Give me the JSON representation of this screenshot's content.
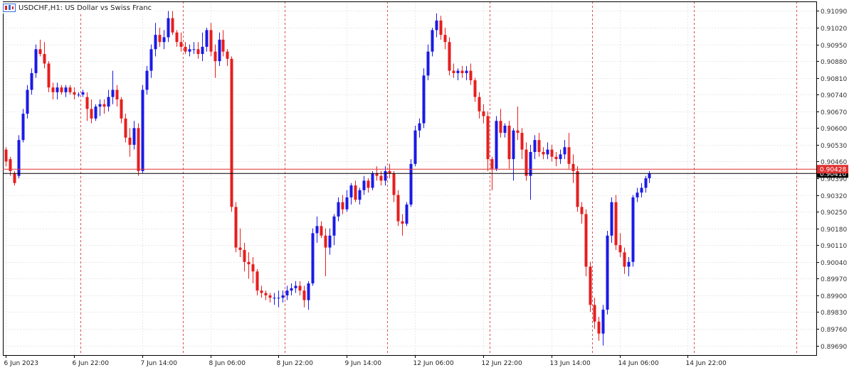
{
  "window": {
    "title": "USDCHF,H1:  US Dollar vs Swiss Franc",
    "icon": "chart-window-icon"
  },
  "colors": {
    "background": "#ffffff",
    "bull": "#1a1ae6",
    "bear": "#e61e1e",
    "grid": "#e8e8e8",
    "separator": "#e05050",
    "axis_text": "#333333",
    "time_text": "#222222",
    "bid_line": "#e03030",
    "ask_line": "#000000"
  },
  "chart_data": {
    "type": "candlestick",
    "symbol": "USDCHF",
    "timeframe": "H1",
    "description": "US Dollar vs Swiss Franc",
    "ylim": [
      0.8965,
      0.9113
    ],
    "y_ticks": [
      "0.91090",
      "0.91020",
      "0.90950",
      "0.90880",
      "0.90810",
      "0.90740",
      "0.90670",
      "0.90600",
      "0.90530",
      "0.90460",
      "0.90390",
      "0.90320",
      "0.90250",
      "0.90180",
      "0.90110",
      "0.90040",
      "0.89970",
      "0.89900",
      "0.89830",
      "0.89760",
      "0.89690"
    ],
    "x_labels": [
      {
        "bar": 0,
        "text": "6 Jun 2023"
      },
      {
        "bar": 16,
        "text": "6 Jun 22:00"
      },
      {
        "bar": 32,
        "text": "7 Jun 14:00"
      },
      {
        "bar": 48,
        "text": "8 Jun 06:00"
      },
      {
        "bar": 64,
        "text": "8 Jun 22:00"
      },
      {
        "bar": 80,
        "text": "9 Jun 14:00"
      },
      {
        "bar": 96,
        "text": "12 Jun 06:00"
      },
      {
        "bar": 112,
        "text": "12 Jun 22:00"
      },
      {
        "bar": 128,
        "text": "13 Jun 14:00"
      },
      {
        "bar": 144,
        "text": "14 Jun 06:00"
      },
      {
        "bar": 160,
        "text": "14 Jun 22:00"
      }
    ],
    "period_separator_bars": [
      18,
      42,
      66,
      90,
      114,
      138,
      162,
      186
    ],
    "bid_price": "0.90428",
    "bid_value": 0.90428,
    "ask_price": "0.90410",
    "ask_value": 0.9041,
    "candles": [
      [
        0.9051,
        0.9052,
        0.9044,
        0.9046
      ],
      [
        0.9047,
        0.9048,
        0.904,
        0.9042
      ],
      [
        0.9041,
        0.9042,
        0.9036,
        0.9037
      ],
      [
        0.904,
        0.9057,
        0.9039,
        0.9055
      ],
      [
        0.9055,
        0.9068,
        0.9054,
        0.9066
      ],
      [
        0.9066,
        0.9078,
        0.9064,
        0.9076
      ],
      [
        0.9076,
        0.9085,
        0.9074,
        0.9083
      ],
      [
        0.9083,
        0.9095,
        0.9081,
        0.9093
      ],
      [
        0.9093,
        0.9097,
        0.909,
        0.9091
      ],
      [
        0.9091,
        0.9096,
        0.9085,
        0.9087
      ],
      [
        0.9087,
        0.9088,
        0.9075,
        0.9077
      ],
      [
        0.9077,
        0.9079,
        0.9072,
        0.9075
      ],
      [
        0.9075,
        0.9079,
        0.9072,
        0.9077
      ],
      [
        0.9077,
        0.9078,
        0.9074,
        0.9075
      ],
      [
        0.9075,
        0.9078,
        0.9073,
        0.9077
      ],
      [
        0.9077,
        0.9078,
        0.9074,
        0.9075
      ],
      [
        0.9075,
        0.9077,
        0.9072,
        0.9074
      ],
      [
        0.9074,
        0.9075,
        0.9073,
        0.9074
      ],
      [
        0.9074,
        0.9076,
        0.9073,
        0.9075
      ],
      [
        0.9073,
        0.9075,
        0.9063,
        0.9068
      ],
      [
        0.9068,
        0.9072,
        0.9062,
        0.9064
      ],
      [
        0.9064,
        0.907,
        0.9063,
        0.9069
      ],
      [
        0.9069,
        0.9072,
        0.9065,
        0.907
      ],
      [
        0.907,
        0.9072,
        0.9066,
        0.9069
      ],
      [
        0.9069,
        0.9076,
        0.9067,
        0.9073
      ],
      [
        0.9073,
        0.9084,
        0.907,
        0.9076
      ],
      [
        0.9076,
        0.9078,
        0.9069,
        0.9072
      ],
      [
        0.9072,
        0.9073,
        0.9062,
        0.9064
      ],
      [
        0.9064,
        0.9066,
        0.9054,
        0.9056
      ],
      [
        0.9056,
        0.906,
        0.9048,
        0.9053
      ],
      [
        0.9053,
        0.9063,
        0.9051,
        0.906
      ],
      [
        0.906,
        0.9062,
        0.904,
        0.9042
      ],
      [
        0.9042,
        0.9078,
        0.9041,
        0.9076
      ],
      [
        0.9076,
        0.9086,
        0.9074,
        0.9084
      ],
      [
        0.9084,
        0.9095,
        0.9081,
        0.9093
      ],
      [
        0.9093,
        0.9104,
        0.909,
        0.9099
      ],
      [
        0.9099,
        0.9102,
        0.9094,
        0.9096
      ],
      [
        0.9096,
        0.9101,
        0.9093,
        0.9098
      ],
      [
        0.9098,
        0.9109,
        0.9096,
        0.9106
      ],
      [
        0.9106,
        0.9109,
        0.9099,
        0.91
      ],
      [
        0.91,
        0.9101,
        0.9094,
        0.9096
      ],
      [
        0.9096,
        0.91,
        0.9092,
        0.9094
      ],
      [
        0.9094,
        0.9096,
        0.9091,
        0.9092
      ],
      [
        0.9092,
        0.9095,
        0.909,
        0.9093
      ],
      [
        0.9093,
        0.9096,
        0.9091,
        0.9093
      ],
      [
        0.9093,
        0.9096,
        0.9089,
        0.9091
      ],
      [
        0.9091,
        0.91,
        0.9088,
        0.9094
      ],
      [
        0.9094,
        0.9102,
        0.9092,
        0.9101
      ],
      [
        0.9101,
        0.9104,
        0.909,
        0.9092
      ],
      [
        0.9092,
        0.9095,
        0.9081,
        0.9088
      ],
      [
        0.9088,
        0.91,
        0.9086,
        0.9097
      ],
      [
        0.9097,
        0.9101,
        0.909,
        0.9092
      ],
      [
        0.9092,
        0.9093,
        0.9086,
        0.9089
      ],
      [
        0.9089,
        0.909,
        0.9025,
        0.9027
      ],
      [
        0.9027,
        0.9029,
        0.9008,
        0.901
      ],
      [
        0.901,
        0.9018,
        0.9006,
        0.9009
      ],
      [
        0.9009,
        0.9012,
        0.9,
        0.9004
      ],
      [
        0.9004,
        0.9008,
        0.8997,
        0.9003
      ],
      [
        0.9003,
        0.9006,
        0.8995,
        0.9
      ],
      [
        0.9,
        0.9001,
        0.899,
        0.8992
      ],
      [
        0.8992,
        0.8994,
        0.8989,
        0.8991
      ],
      [
        0.8991,
        0.8992,
        0.8988,
        0.899
      ],
      [
        0.899,
        0.8991,
        0.8987,
        0.8989
      ],
      [
        0.8989,
        0.8991,
        0.8986,
        0.8989
      ],
      [
        0.8989,
        0.8992,
        0.8985,
        0.8989
      ],
      [
        0.8989,
        0.8992,
        0.8987,
        0.899
      ],
      [
        0.899,
        0.8994,
        0.8988,
        0.8992
      ],
      [
        0.8992,
        0.8995,
        0.899,
        0.8993
      ],
      [
        0.8993,
        0.8996,
        0.8991,
        0.8994
      ],
      [
        0.8994,
        0.8996,
        0.899,
        0.8992
      ],
      [
        0.8992,
        0.8994,
        0.8985,
        0.8988
      ],
      [
        0.8988,
        0.8996,
        0.8984,
        0.8995
      ],
      [
        0.8995,
        0.9018,
        0.8994,
        0.9016
      ],
      [
        0.9016,
        0.9023,
        0.9012,
        0.9019
      ],
      [
        0.9019,
        0.9021,
        0.9014,
        0.9015
      ],
      [
        0.9015,
        0.9018,
        0.8998,
        0.901
      ],
      [
        0.901,
        0.9018,
        0.9007,
        0.9015
      ],
      [
        0.9015,
        0.9024,
        0.9011,
        0.9023
      ],
      [
        0.9023,
        0.9031,
        0.9021,
        0.9029
      ],
      [
        0.9029,
        0.9032,
        0.9024,
        0.9026
      ],
      [
        0.9026,
        0.9034,
        0.9025,
        0.9031
      ],
      [
        0.9031,
        0.9037,
        0.9028,
        0.9036
      ],
      [
        0.9036,
        0.9038,
        0.9029,
        0.903
      ],
      [
        0.903,
        0.9035,
        0.9028,
        0.9034
      ],
      [
        0.9034,
        0.904,
        0.9032,
        0.9038
      ],
      [
        0.9038,
        0.9039,
        0.9033,
        0.9035
      ],
      [
        0.9035,
        0.9042,
        0.9034,
        0.9041
      ],
      [
        0.9041,
        0.9044,
        0.9038,
        0.904
      ],
      [
        0.904,
        0.9042,
        0.9036,
        0.9038
      ],
      [
        0.9038,
        0.9044,
        0.9036,
        0.9042
      ],
      [
        0.9042,
        0.9045,
        0.9039,
        0.9041
      ],
      [
        0.9041,
        0.9042,
        0.9029,
        0.9032
      ],
      [
        0.9032,
        0.9034,
        0.9019,
        0.9021
      ],
      [
        0.9021,
        0.9024,
        0.9015,
        0.902
      ],
      [
        0.902,
        0.9029,
        0.9019,
        0.9028
      ],
      [
        0.9028,
        0.9047,
        0.9027,
        0.9045
      ],
      [
        0.9045,
        0.9061,
        0.9044,
        0.9059
      ],
      [
        0.9059,
        0.9064,
        0.9056,
        0.9062
      ],
      [
        0.9062,
        0.9085,
        0.906,
        0.9082
      ],
      [
        0.9082,
        0.9095,
        0.908,
        0.9092
      ],
      [
        0.9092,
        0.9102,
        0.909,
        0.9101
      ],
      [
        0.9101,
        0.9108,
        0.9098,
        0.9105
      ],
      [
        0.9105,
        0.9107,
        0.9097,
        0.9099
      ],
      [
        0.9099,
        0.9102,
        0.9093,
        0.9096
      ],
      [
        0.9096,
        0.9098,
        0.9082,
        0.9084
      ],
      [
        0.9084,
        0.9087,
        0.9081,
        0.9083
      ],
      [
        0.9083,
        0.9085,
        0.908,
        0.9084
      ],
      [
        0.9084,
        0.9086,
        0.9081,
        0.9083
      ],
      [
        0.9083,
        0.9086,
        0.908,
        0.9084
      ],
      [
        0.9084,
        0.9087,
        0.9078,
        0.908
      ],
      [
        0.908,
        0.9081,
        0.9071,
        0.9073
      ],
      [
        0.9073,
        0.9075,
        0.9064,
        0.9067
      ],
      [
        0.9067,
        0.907,
        0.9062,
        0.9065
      ],
      [
        0.9065,
        0.9067,
        0.9042,
        0.9047
      ],
      [
        0.9047,
        0.9048,
        0.9034,
        0.9043
      ],
      [
        0.9043,
        0.9065,
        0.9042,
        0.9063
      ],
      [
        0.9063,
        0.9068,
        0.9056,
        0.9058
      ],
      [
        0.9058,
        0.9062,
        0.9056,
        0.9061
      ],
      [
        0.9061,
        0.9063,
        0.9043,
        0.9047
      ],
      [
        0.9047,
        0.906,
        0.9038,
        0.9059
      ],
      [
        0.9059,
        0.9069,
        0.9055,
        0.9058
      ],
      [
        0.9058,
        0.906,
        0.9047,
        0.9051
      ],
      [
        0.9051,
        0.9054,
        0.9038,
        0.904
      ],
      [
        0.904,
        0.9053,
        0.903,
        0.905
      ],
      [
        0.905,
        0.9057,
        0.9047,
        0.9055
      ],
      [
        0.9055,
        0.9058,
        0.9048,
        0.905
      ],
      [
        0.905,
        0.9052,
        0.9047,
        0.9049
      ],
      [
        0.9049,
        0.9054,
        0.9047,
        0.9051
      ],
      [
        0.9051,
        0.9053,
        0.9046,
        0.9048
      ],
      [
        0.9048,
        0.905,
        0.9044,
        0.9047
      ],
      [
        0.9047,
        0.9051,
        0.9045,
        0.9049
      ],
      [
        0.9049,
        0.9055,
        0.9047,
        0.9052
      ],
      [
        0.9052,
        0.9058,
        0.9043,
        0.9045
      ],
      [
        0.9045,
        0.9049,
        0.9037,
        0.9042
      ],
      [
        0.9042,
        0.9044,
        0.9025,
        0.9027
      ],
      [
        0.9027,
        0.9029,
        0.902,
        0.9024
      ],
      [
        0.9024,
        0.9026,
        0.8998,
        0.9002
      ],
      [
        0.9002,
        0.9004,
        0.8983,
        0.8986
      ],
      [
        0.8986,
        0.8989,
        0.8976,
        0.8979
      ],
      [
        0.8979,
        0.8981,
        0.8971,
        0.8974
      ],
      [
        0.8974,
        0.8986,
        0.8969,
        0.8984
      ],
      [
        0.8984,
        0.9017,
        0.8982,
        0.9015
      ],
      [
        0.9015,
        0.9031,
        0.9012,
        0.9029
      ],
      [
        0.9029,
        0.9032,
        0.9009,
        0.9011
      ],
      [
        0.9011,
        0.9016,
        0.9006,
        0.9008
      ],
      [
        0.9008,
        0.901,
        0.8999,
        0.9002
      ],
      [
        0.9002,
        0.9006,
        0.8998,
        0.9004
      ],
      [
        0.9004,
        0.9032,
        0.9002,
        0.9031
      ],
      [
        0.9031,
        0.9035,
        0.9029,
        0.9033
      ],
      [
        0.9033,
        0.9037,
        0.9031,
        0.9035
      ],
      [
        0.9035,
        0.904,
        0.9033,
        0.9039
      ],
      [
        0.9039,
        0.9042,
        0.9037,
        0.9041
      ]
    ]
  }
}
